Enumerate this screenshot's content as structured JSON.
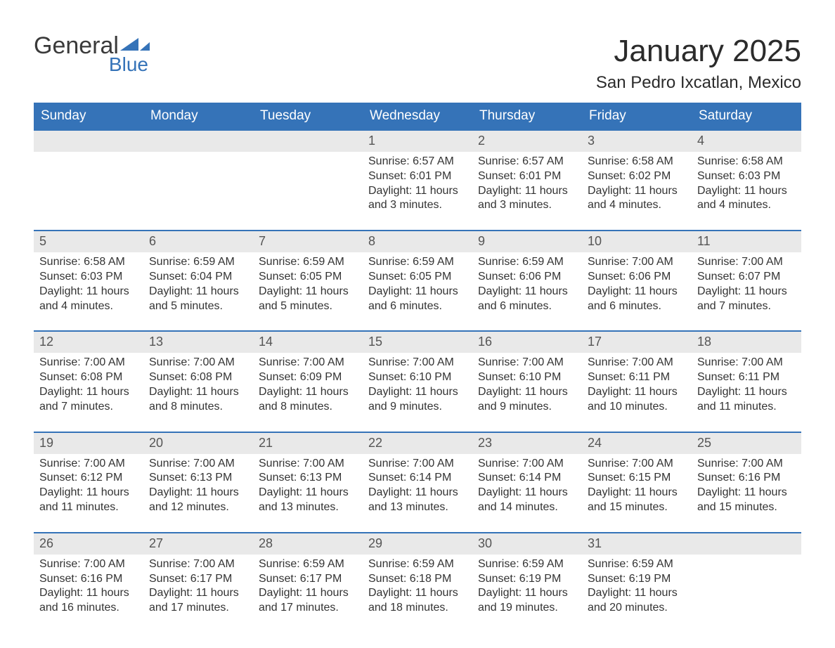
{
  "logo": {
    "general": "General",
    "blue": "Blue",
    "flag_color": "#3573b8"
  },
  "title": "January 2025",
  "location": "San Pedro Ixcatlan, Mexico",
  "colors": {
    "header_bg": "#3573b8",
    "header_text": "#ffffff",
    "daynum_bg": "#e9e9e9",
    "row_border": "#3573b8",
    "body_text": "#333333"
  },
  "weekdays": [
    "Sunday",
    "Monday",
    "Tuesday",
    "Wednesday",
    "Thursday",
    "Friday",
    "Saturday"
  ],
  "weeks": [
    [
      null,
      null,
      null,
      {
        "n": "1",
        "sr": "Sunrise: 6:57 AM",
        "ss": "Sunset: 6:01 PM",
        "d1": "Daylight: 11 hours",
        "d2": "and 3 minutes."
      },
      {
        "n": "2",
        "sr": "Sunrise: 6:57 AM",
        "ss": "Sunset: 6:01 PM",
        "d1": "Daylight: 11 hours",
        "d2": "and 3 minutes."
      },
      {
        "n": "3",
        "sr": "Sunrise: 6:58 AM",
        "ss": "Sunset: 6:02 PM",
        "d1": "Daylight: 11 hours",
        "d2": "and 4 minutes."
      },
      {
        "n": "4",
        "sr": "Sunrise: 6:58 AM",
        "ss": "Sunset: 6:03 PM",
        "d1": "Daylight: 11 hours",
        "d2": "and 4 minutes."
      }
    ],
    [
      {
        "n": "5",
        "sr": "Sunrise: 6:58 AM",
        "ss": "Sunset: 6:03 PM",
        "d1": "Daylight: 11 hours",
        "d2": "and 4 minutes."
      },
      {
        "n": "6",
        "sr": "Sunrise: 6:59 AM",
        "ss": "Sunset: 6:04 PM",
        "d1": "Daylight: 11 hours",
        "d2": "and 5 minutes."
      },
      {
        "n": "7",
        "sr": "Sunrise: 6:59 AM",
        "ss": "Sunset: 6:05 PM",
        "d1": "Daylight: 11 hours",
        "d2": "and 5 minutes."
      },
      {
        "n": "8",
        "sr": "Sunrise: 6:59 AM",
        "ss": "Sunset: 6:05 PM",
        "d1": "Daylight: 11 hours",
        "d2": "and 6 minutes."
      },
      {
        "n": "9",
        "sr": "Sunrise: 6:59 AM",
        "ss": "Sunset: 6:06 PM",
        "d1": "Daylight: 11 hours",
        "d2": "and 6 minutes."
      },
      {
        "n": "10",
        "sr": "Sunrise: 7:00 AM",
        "ss": "Sunset: 6:06 PM",
        "d1": "Daylight: 11 hours",
        "d2": "and 6 minutes."
      },
      {
        "n": "11",
        "sr": "Sunrise: 7:00 AM",
        "ss": "Sunset: 6:07 PM",
        "d1": "Daylight: 11 hours",
        "d2": "and 7 minutes."
      }
    ],
    [
      {
        "n": "12",
        "sr": "Sunrise: 7:00 AM",
        "ss": "Sunset: 6:08 PM",
        "d1": "Daylight: 11 hours",
        "d2": "and 7 minutes."
      },
      {
        "n": "13",
        "sr": "Sunrise: 7:00 AM",
        "ss": "Sunset: 6:08 PM",
        "d1": "Daylight: 11 hours",
        "d2": "and 8 minutes."
      },
      {
        "n": "14",
        "sr": "Sunrise: 7:00 AM",
        "ss": "Sunset: 6:09 PM",
        "d1": "Daylight: 11 hours",
        "d2": "and 8 minutes."
      },
      {
        "n": "15",
        "sr": "Sunrise: 7:00 AM",
        "ss": "Sunset: 6:10 PM",
        "d1": "Daylight: 11 hours",
        "d2": "and 9 minutes."
      },
      {
        "n": "16",
        "sr": "Sunrise: 7:00 AM",
        "ss": "Sunset: 6:10 PM",
        "d1": "Daylight: 11 hours",
        "d2": "and 9 minutes."
      },
      {
        "n": "17",
        "sr": "Sunrise: 7:00 AM",
        "ss": "Sunset: 6:11 PM",
        "d1": "Daylight: 11 hours",
        "d2": "and 10 minutes."
      },
      {
        "n": "18",
        "sr": "Sunrise: 7:00 AM",
        "ss": "Sunset: 6:11 PM",
        "d1": "Daylight: 11 hours",
        "d2": "and 11 minutes."
      }
    ],
    [
      {
        "n": "19",
        "sr": "Sunrise: 7:00 AM",
        "ss": "Sunset: 6:12 PM",
        "d1": "Daylight: 11 hours",
        "d2": "and 11 minutes."
      },
      {
        "n": "20",
        "sr": "Sunrise: 7:00 AM",
        "ss": "Sunset: 6:13 PM",
        "d1": "Daylight: 11 hours",
        "d2": "and 12 minutes."
      },
      {
        "n": "21",
        "sr": "Sunrise: 7:00 AM",
        "ss": "Sunset: 6:13 PM",
        "d1": "Daylight: 11 hours",
        "d2": "and 13 minutes."
      },
      {
        "n": "22",
        "sr": "Sunrise: 7:00 AM",
        "ss": "Sunset: 6:14 PM",
        "d1": "Daylight: 11 hours",
        "d2": "and 13 minutes."
      },
      {
        "n": "23",
        "sr": "Sunrise: 7:00 AM",
        "ss": "Sunset: 6:14 PM",
        "d1": "Daylight: 11 hours",
        "d2": "and 14 minutes."
      },
      {
        "n": "24",
        "sr": "Sunrise: 7:00 AM",
        "ss": "Sunset: 6:15 PM",
        "d1": "Daylight: 11 hours",
        "d2": "and 15 minutes."
      },
      {
        "n": "25",
        "sr": "Sunrise: 7:00 AM",
        "ss": "Sunset: 6:16 PM",
        "d1": "Daylight: 11 hours",
        "d2": "and 15 minutes."
      }
    ],
    [
      {
        "n": "26",
        "sr": "Sunrise: 7:00 AM",
        "ss": "Sunset: 6:16 PM",
        "d1": "Daylight: 11 hours",
        "d2": "and 16 minutes."
      },
      {
        "n": "27",
        "sr": "Sunrise: 7:00 AM",
        "ss": "Sunset: 6:17 PM",
        "d1": "Daylight: 11 hours",
        "d2": "and 17 minutes."
      },
      {
        "n": "28",
        "sr": "Sunrise: 6:59 AM",
        "ss": "Sunset: 6:17 PM",
        "d1": "Daylight: 11 hours",
        "d2": "and 17 minutes."
      },
      {
        "n": "29",
        "sr": "Sunrise: 6:59 AM",
        "ss": "Sunset: 6:18 PM",
        "d1": "Daylight: 11 hours",
        "d2": "and 18 minutes."
      },
      {
        "n": "30",
        "sr": "Sunrise: 6:59 AM",
        "ss": "Sunset: 6:19 PM",
        "d1": "Daylight: 11 hours",
        "d2": "and 19 minutes."
      },
      {
        "n": "31",
        "sr": "Sunrise: 6:59 AM",
        "ss": "Sunset: 6:19 PM",
        "d1": "Daylight: 11 hours",
        "d2": "and 20 minutes."
      },
      null
    ]
  ]
}
